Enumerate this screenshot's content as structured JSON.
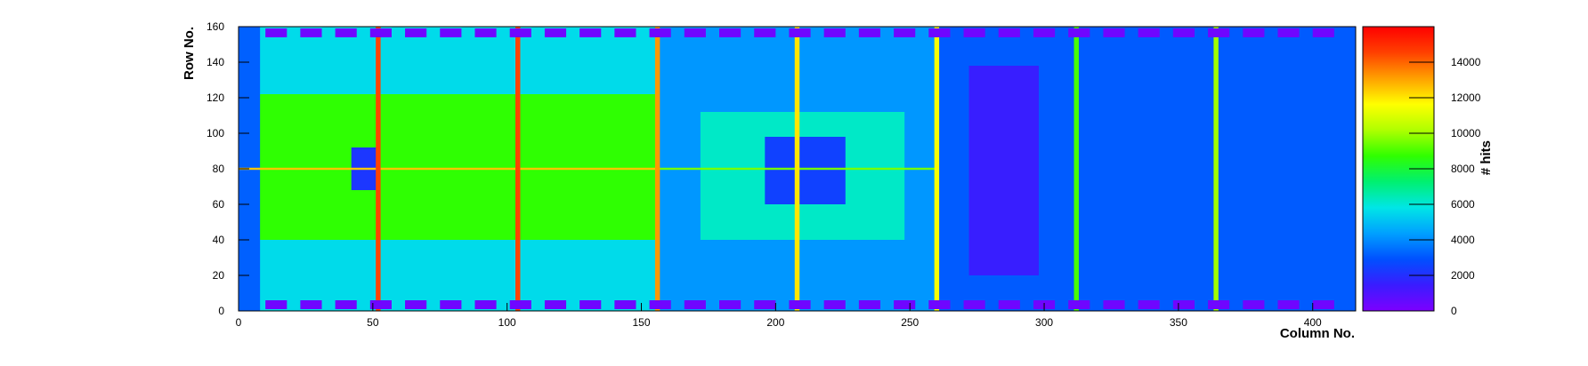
{
  "chart_data": {
    "type": "heatmap",
    "title": "",
    "xlabel": "Column No.",
    "ylabel": "Row No.",
    "zlabel": "# hits",
    "xlim": [
      0,
      416
    ],
    "ylim": [
      0,
      160
    ],
    "zlim": [
      0,
      16000
    ],
    "x_ticks": [
      0,
      50,
      100,
      150,
      200,
      250,
      300,
      350,
      400
    ],
    "y_ticks": [
      0,
      20,
      40,
      60,
      80,
      100,
      120,
      140,
      160
    ],
    "z_ticks": [
      0,
      2000,
      4000,
      6000,
      8000,
      10000,
      12000,
      14000
    ],
    "colormap": [
      "#7d00ff",
      "#3a1cff",
      "#0050ff",
      "#00a0ff",
      "#00e6e6",
      "#00f070",
      "#30ff00",
      "#b0ff00",
      "#ffff00",
      "#ffa000",
      "#ff4000",
      "#ff0000"
    ],
    "regions": [
      {
        "x0": 0,
        "x1": 156,
        "y0": 0,
        "y1": 160,
        "level": 5600
      },
      {
        "x0": 6,
        "x1": 156,
        "y0": 40,
        "y1": 122,
        "level": 8700
      },
      {
        "x0": 156,
        "x1": 260,
        "y0": 0,
        "y1": 160,
        "level": 4200
      },
      {
        "x0": 172,
        "x1": 248,
        "y0": 40,
        "y1": 112,
        "level": 6200
      },
      {
        "x0": 260,
        "x1": 416,
        "y0": 0,
        "y1": 160,
        "level": 3100
      },
      {
        "x0": 272,
        "x1": 298,
        "y0": 20,
        "y1": 138,
        "level": 1500
      },
      {
        "x0": 42,
        "x1": 52,
        "y0": 68,
        "y1": 92,
        "level": 2200
      },
      {
        "x0": 196,
        "x1": 226,
        "y0": 60,
        "y1": 98,
        "level": 2500
      },
      {
        "x0": 0,
        "x1": 8,
        "y0": 0,
        "y1": 160,
        "level": 3200
      }
    ],
    "hot_columns": [
      {
        "x": 52,
        "level": 14500
      },
      {
        "x": 104,
        "level": 14500
      },
      {
        "x": 156,
        "level": 13200
      },
      {
        "x": 208,
        "level": 12000
      },
      {
        "x": 260,
        "level": 11500
      },
      {
        "x": 312,
        "level": 9000
      },
      {
        "x": 364,
        "level": 10000
      }
    ],
    "hot_rows": [
      {
        "y": 80,
        "x0": 0,
        "x1": 156,
        "level": 12500
      },
      {
        "y": 80,
        "x0": 156,
        "x1": 260,
        "level": 9500
      }
    ],
    "pads_top": {
      "y": 154,
      "h": 5,
      "level": 300
    },
    "pads_bottom": {
      "y": 1,
      "h": 5,
      "level": 300
    }
  }
}
